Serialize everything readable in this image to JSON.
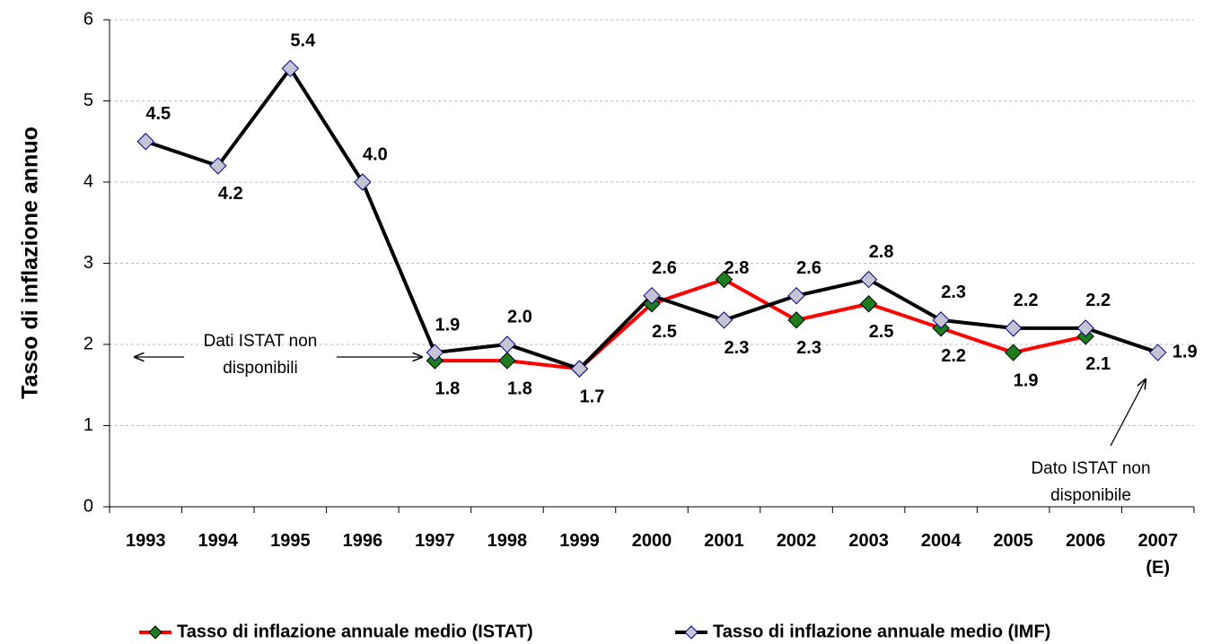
{
  "chart_data": {
    "type": "line",
    "ylabel": "Tasso di inflazione annuo",
    "categories": [
      "1993",
      "1994",
      "1995",
      "1996",
      "1997",
      "1998",
      "1999",
      "2000",
      "2001",
      "2002",
      "2003",
      "2004",
      "2005",
      "2006",
      "2007 (E)"
    ],
    "series": [
      {
        "name": "Tasso di inflazione annuale medio (ISTAT)",
        "color": "#ff0000",
        "marker_color": "#1e7b1e",
        "values": [
          null,
          null,
          null,
          null,
          1.8,
          1.8,
          1.7,
          2.5,
          2.8,
          2.3,
          2.5,
          2.2,
          1.9,
          2.1,
          null
        ],
        "value_labels": [
          null,
          null,
          null,
          null,
          "1.8",
          "1.8",
          null,
          "2.5",
          "2.8",
          "2.3",
          "2.5",
          "2.2",
          "1.9",
          "2.1",
          null
        ]
      },
      {
        "name": "Tasso di inflazione annuale medio (IMF)",
        "color": "#000000",
        "marker_color": "#c4c4d4",
        "values": [
          4.5,
          4.2,
          5.4,
          4.0,
          1.9,
          2.0,
          1.7,
          2.6,
          2.3,
          2.6,
          2.8,
          2.3,
          2.2,
          2.2,
          1.9
        ],
        "value_labels": [
          "4.5",
          "4.2",
          "5.4",
          "4.0",
          "1.9",
          "2.0",
          "1.7",
          "2.6",
          "2.3",
          "2.6",
          "2.8",
          "2.3",
          "2.2",
          "2.2",
          "1.9"
        ]
      }
    ],
    "ylim": [
      0,
      6
    ],
    "yticks": [
      0,
      1,
      2,
      3,
      4,
      5,
      6
    ],
    "grid": true,
    "annotations": [
      "Dati ISTAT non disponibili",
      "Dato ISTAT non disponibile"
    ],
    "legend": "bottom"
  }
}
